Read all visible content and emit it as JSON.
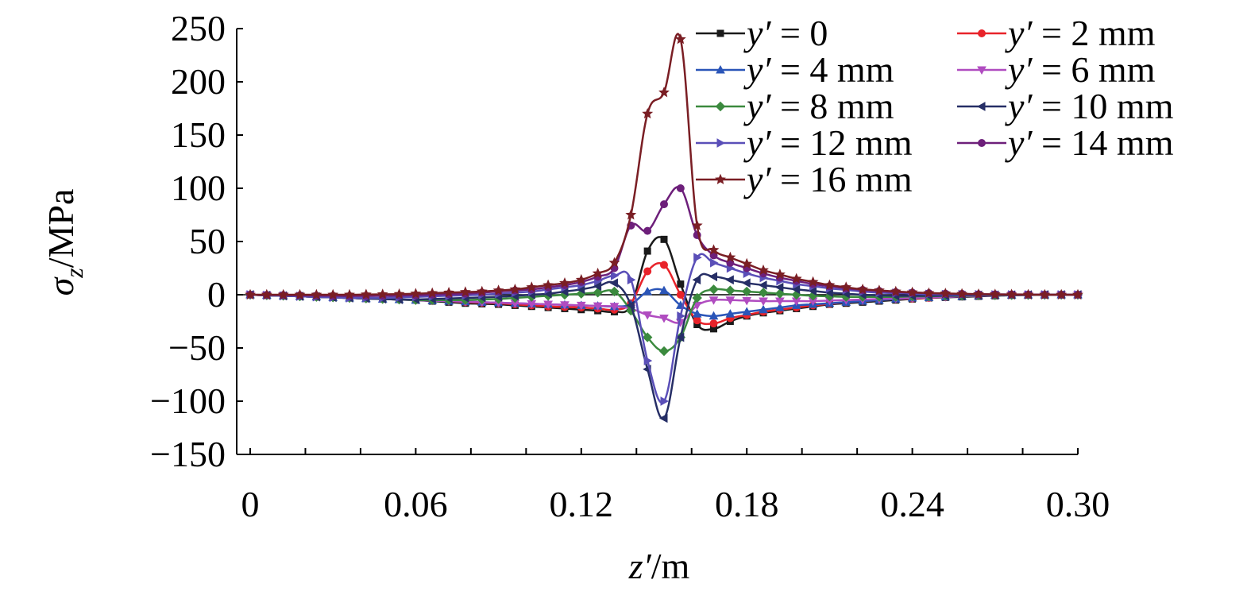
{
  "chart_data": {
    "type": "line",
    "xlabel": {
      "var": "z′",
      "unit": "/m"
    },
    "ylabel": {
      "var": "σ",
      "sub": "z",
      "unit": "/MPa"
    },
    "xlim": [
      0,
      0.3
    ],
    "ylim": [
      -150,
      250
    ],
    "xticks": [
      0,
      0.06,
      0.12,
      0.18,
      0.24,
      0.3
    ],
    "xtick_labels": [
      "0",
      "0.06",
      "0.12",
      "0.18",
      "0.24",
      "0.30"
    ],
    "yticks": [
      -150,
      -100,
      -50,
      0,
      50,
      100,
      150,
      200,
      250
    ],
    "ytick_labels": [
      "−150",
      "−100",
      "−50",
      "0",
      "50",
      "100",
      "150",
      "200",
      "250"
    ],
    "grid": false,
    "legend_position": "top-right",
    "x": [
      0,
      0.006,
      0.012,
      0.018,
      0.024,
      0.03,
      0.036,
      0.042,
      0.048,
      0.054,
      0.06,
      0.066,
      0.072,
      0.078,
      0.084,
      0.09,
      0.096,
      0.102,
      0.108,
      0.114,
      0.12,
      0.126,
      0.132,
      0.138,
      0.144,
      0.15,
      0.156,
      0.162,
      0.168,
      0.174,
      0.18,
      0.186,
      0.192,
      0.198,
      0.204,
      0.21,
      0.216,
      0.222,
      0.228,
      0.234,
      0.24,
      0.246,
      0.252,
      0.258,
      0.264,
      0.27,
      0.276,
      0.282,
      0.288,
      0.294,
      0.3
    ],
    "series": [
      {
        "label_var": "y′",
        "label_value": " = 0",
        "color": "#1a1a1a",
        "marker": "square",
        "values": [
          0,
          -0.5,
          -1,
          -1.5,
          -2,
          -2.5,
          -3,
          -3.5,
          -4,
          -4.5,
          -5,
          -6,
          -7,
          -8,
          -8.5,
          -9,
          -10,
          -11,
          -12,
          -13,
          -14,
          -15,
          -16,
          -10,
          41,
          52,
          10,
          -28,
          -32,
          -25,
          -20,
          -17,
          -15,
          -13,
          -11,
          -9,
          -8,
          -7,
          -6,
          -5,
          -4,
          -3,
          -2.5,
          -2,
          -1.5,
          -1,
          -0.5,
          -0.3,
          -0.2,
          -0.1,
          0
        ]
      },
      {
        "label_var": "y′",
        "label_value": " = 2 mm",
        "color": "#e8232a",
        "marker": "circle",
        "values": [
          0,
          -0.5,
          -1,
          -1.5,
          -2,
          -2.5,
          -3,
          -3.5,
          -4,
          -4.5,
          -5,
          -5.5,
          -6,
          -7,
          -7.5,
          -8,
          -9,
          -10,
          -11,
          -11.5,
          -12,
          -13,
          -14,
          -8,
          22,
          28,
          0,
          -24,
          -27,
          -22,
          -19,
          -16,
          -14,
          -12,
          -10,
          -8.5,
          -7,
          -6,
          -5,
          -4,
          -3.5,
          -3,
          -2,
          -1.5,
          -1,
          -0.5,
          -0.3,
          -0.2,
          -0.1,
          0,
          0
        ]
      },
      {
        "label_var": "y′",
        "label_value": " = 4 mm",
        "color": "#2a55b8",
        "marker": "triangle-up",
        "values": [
          0,
          -0.5,
          -1,
          -1.5,
          -2,
          -2.5,
          -3,
          -3.5,
          -4,
          -4.5,
          -5,
          -5.5,
          -6,
          -6.5,
          -7,
          -7.5,
          -8,
          -8.5,
          -9,
          -9.5,
          -10,
          -10.5,
          -11,
          -9,
          3,
          4,
          -10,
          -18,
          -20,
          -18,
          -16,
          -14,
          -12,
          -10,
          -9,
          -8,
          -7,
          -6,
          -5,
          -4,
          -3,
          -2.5,
          -2,
          -1.5,
          -1,
          -0.5,
          -0.3,
          -0.2,
          -0.1,
          0,
          0
        ]
      },
      {
        "label_var": "y′",
        "label_value": " = 6 mm",
        "color": "#b04cc0",
        "marker": "triangle-down",
        "values": [
          0,
          -0.5,
          -1,
          -1.5,
          -2,
          -2.5,
          -3,
          -3.5,
          -4,
          -4.5,
          -5,
          -5.5,
          -6,
          -6.5,
          -7,
          -7.5,
          -8,
          -8.5,
          -9,
          -9.5,
          -10,
          -10.5,
          -11,
          -13,
          -19,
          -22,
          -26,
          -10,
          -5,
          -5,
          -5.5,
          -6,
          -6,
          -6,
          -6,
          -5.5,
          -5,
          -4.5,
          -4,
          -3.5,
          -3,
          -2.5,
          -2,
          -1.5,
          -1,
          -0.5,
          -0.3,
          -0.2,
          -0.1,
          0,
          0
        ]
      },
      {
        "label_var": "y′",
        "label_value": " = 8 mm",
        "color": "#3b8a3e",
        "marker": "diamond",
        "values": [
          0,
          -0.5,
          -1,
          -1.5,
          -2,
          -2.5,
          -3,
          -3.5,
          -4,
          -4.5,
          -5,
          -5,
          -5,
          -5,
          -4.5,
          -4,
          -3,
          -2,
          -1,
          0,
          1,
          2,
          3,
          -15,
          -40,
          -53,
          -40,
          -3,
          5,
          4,
          3,
          2,
          1,
          0,
          -1,
          -1.5,
          -2,
          -2,
          -2,
          -2,
          -1.5,
          -1.5,
          -1,
          -1,
          -0.5,
          -0.5,
          -0.3,
          -0.2,
          -0.1,
          0,
          0
        ]
      },
      {
        "label_var": "y′",
        "label_value": " = 10 mm",
        "color": "#262e66",
        "marker": "triangle-left",
        "values": [
          0,
          -0.5,
          -1,
          -1.5,
          -2,
          -2.5,
          -3,
          -3.5,
          -4,
          -4.5,
          -4.5,
          -4,
          -3.5,
          -3,
          -2.5,
          -2,
          -1,
          0,
          1,
          3,
          5,
          8,
          11,
          -10,
          -70,
          -116,
          -40,
          14,
          17,
          14,
          11,
          9,
          7,
          5,
          3.5,
          2,
          1,
          0,
          -0.5,
          -1,
          -1,
          -1,
          -0.8,
          -0.6,
          -0.4,
          -0.3,
          -0.2,
          -0.1,
          0,
          0,
          0
        ]
      },
      {
        "label_var": "y′",
        "label_value": " = 12 mm",
        "color": "#5a4fb8",
        "marker": "triangle-right",
        "values": [
          0,
          -0.5,
          -1,
          -1.5,
          -2,
          -2.5,
          -3,
          -3,
          -3,
          -2.5,
          -2,
          -1.5,
          -1,
          -0.5,
          0,
          1,
          2,
          3,
          5,
          7,
          9,
          13,
          18,
          14,
          -62,
          -100,
          -20,
          35,
          30,
          25,
          20,
          16,
          13,
          10,
          8,
          6,
          4.5,
          3,
          2,
          1.5,
          1,
          0.5,
          0.3,
          0.2,
          0.1,
          0,
          0,
          0,
          0,
          0,
          0
        ]
      },
      {
        "label_var": "y′",
        "label_value": " = 14 mm",
        "color": "#6d1f7a",
        "marker": "circle",
        "values": [
          0,
          -0.2,
          -0.4,
          -0.6,
          -0.8,
          -1,
          -1.2,
          -1.2,
          -1,
          -0.8,
          -0.5,
          0,
          0.5,
          1,
          2,
          3,
          4,
          5,
          7,
          9,
          12,
          17,
          25,
          65,
          60,
          85,
          100,
          56,
          37,
          30,
          25,
          20,
          16,
          13,
          10,
          8,
          6,
          4.5,
          3.5,
          2.5,
          2,
          1.5,
          1,
          0.8,
          0.5,
          0.4,
          0.3,
          0.2,
          0.1,
          0,
          0
        ]
      },
      {
        "label_var": "y′",
        "label_value": " = 16 mm",
        "color": "#7a1e24",
        "marker": "star",
        "values": [
          0,
          0,
          0,
          0,
          0,
          0,
          0,
          0.2,
          0.4,
          0.6,
          1,
          1.5,
          2,
          2.5,
          3,
          4,
          5,
          7,
          9,
          11,
          14,
          20,
          30,
          75,
          170,
          190,
          240,
          65,
          42,
          35,
          29,
          23,
          19,
          15,
          12,
          9,
          7,
          5,
          4,
          3,
          2.2,
          1.6,
          1.2,
          0.8,
          0.5,
          0.3,
          0.2,
          0.1,
          0,
          0,
          0
        ]
      }
    ]
  }
}
